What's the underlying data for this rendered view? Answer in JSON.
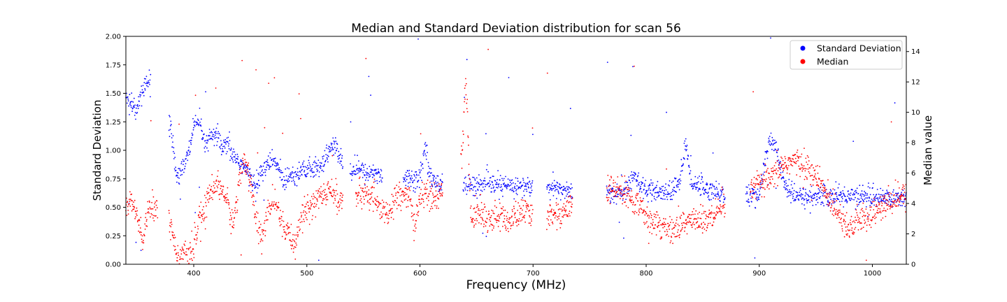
{
  "chart_data": {
    "type": "scatter",
    "title": "Median and Standard Deviation distribution for scan 56",
    "xlabel": "Frequency (MHz)",
    "ylabel_left": "Standard Deviation",
    "ylabel_right": "Median value",
    "xlim": [
      340,
      1030
    ],
    "ylim_left": [
      0,
      2.0
    ],
    "ylim_right": [
      0,
      15
    ],
    "x_ticks": [
      400,
      500,
      600,
      700,
      800,
      900,
      1000
    ],
    "y_left_ticks": [
      "0.00",
      "0.25",
      "0.50",
      "0.75",
      "1.00",
      "1.25",
      "1.50",
      "1.75",
      "2.00"
    ],
    "y_right_ticks": [
      "0",
      "2",
      "4",
      "6",
      "8",
      "10",
      "12",
      "14"
    ],
    "grid": false,
    "legend_position": "top-right",
    "series": [
      {
        "name": "Standard Deviation",
        "axis": "left",
        "color": "#0000ff",
        "anchors_x": [
          340,
          345,
          350,
          355,
          360,
          365,
          380,
          385,
          390,
          395,
          400,
          405,
          410,
          415,
          420,
          425,
          430,
          435,
          440,
          445,
          450,
          455,
          460,
          465,
          470,
          475,
          480,
          485,
          490,
          495,
          500,
          505,
          510,
          515,
          520,
          525,
          530,
          535,
          540,
          545,
          550,
          560,
          570,
          580,
          590,
          595,
          600,
          605,
          610,
          615,
          620,
          640,
          650,
          660,
          670,
          680,
          690,
          700,
          710,
          720,
          730,
          760,
          770,
          780,
          785,
          790,
          795,
          800,
          805,
          810,
          815,
          820,
          825,
          830,
          835,
          840,
          845,
          850,
          855,
          860,
          865,
          870,
          890,
          900,
          905,
          910,
          915,
          920,
          925,
          930,
          940,
          950,
          960,
          970,
          980,
          990,
          1000,
          1010,
          1020,
          1030
        ],
        "anchors_y": [
          1.45,
          1.4,
          1.35,
          1.55,
          1.6,
          1.5,
          1.2,
          0.75,
          0.85,
          0.95,
          1.2,
          1.25,
          1.05,
          1.1,
          1.15,
          1.0,
          1.05,
          0.95,
          0.9,
          0.85,
          0.75,
          0.7,
          0.8,
          0.88,
          0.9,
          0.85,
          0.72,
          0.8,
          0.78,
          0.84,
          0.82,
          0.83,
          0.86,
          0.9,
          1.0,
          1.05,
          0.9,
          0.85,
          0.82,
          0.85,
          0.8,
          0.8,
          0.78,
          0.76,
          0.76,
          0.75,
          0.77,
          1.05,
          0.72,
          0.72,
          0.72,
          0.7,
          0.69,
          0.7,
          0.69,
          0.69,
          0.68,
          0.68,
          0.66,
          0.66,
          0.65,
          0.64,
          0.63,
          0.62,
          0.7,
          0.8,
          0.7,
          0.64,
          0.63,
          0.62,
          0.63,
          0.63,
          0.65,
          0.75,
          1.05,
          0.72,
          0.7,
          0.68,
          0.64,
          0.66,
          0.62,
          0.62,
          0.6,
          0.6,
          0.9,
          1.1,
          1.0,
          0.8,
          0.65,
          0.6,
          0.59,
          0.59,
          0.59,
          0.6,
          0.6,
          0.6,
          0.59,
          0.58,
          0.58,
          0.58
        ],
        "gaps": [
          [
            362,
            378
          ],
          [
            532,
            538
          ],
          [
            567,
            585
          ],
          [
            620,
            638
          ],
          [
            700,
            712
          ],
          [
            735,
            765
          ],
          [
            870,
            888
          ]
        ]
      },
      {
        "name": "Median",
        "axis": "right",
        "color": "#ff0000",
        "anchors_x": [
          340,
          345,
          350,
          355,
          360,
          365,
          380,
          385,
          390,
          395,
          400,
          405,
          410,
          415,
          420,
          425,
          430,
          435,
          440,
          445,
          450,
          455,
          460,
          465,
          470,
          475,
          480,
          485,
          490,
          495,
          500,
          505,
          510,
          515,
          520,
          525,
          530,
          545,
          550,
          560,
          570,
          580,
          590,
          595,
          600,
          605,
          610,
          615,
          638,
          640,
          642,
          645,
          650,
          660,
          670,
          680,
          690,
          700,
          710,
          720,
          730,
          760,
          770,
          780,
          790,
          800,
          810,
          820,
          830,
          840,
          850,
          860,
          865,
          870,
          900,
          910,
          920,
          930,
          940,
          950,
          960,
          970,
          980,
          990,
          1000,
          1010,
          1020,
          1030
        ],
        "anchors_y": [
          3.8,
          4.2,
          3.0,
          1.5,
          3.5,
          4.0,
          2.5,
          0.8,
          0.5,
          0.5,
          1.0,
          3.0,
          3.5,
          5.0,
          5.2,
          5.0,
          4.0,
          2.5,
          5.5,
          7.0,
          5.5,
          3.0,
          1.5,
          3.5,
          4.0,
          3.5,
          2.0,
          1.8,
          1.5,
          3.2,
          3.5,
          4.0,
          4.5,
          4.5,
          4.8,
          4.5,
          4.2,
          4.5,
          4.5,
          4.5,
          3.0,
          4.5,
          4.5,
          2.5,
          4.5,
          4.8,
          4.3,
          4.2,
          8.0,
          12.0,
          10.0,
          3.0,
          3.5,
          3.0,
          3.2,
          2.8,
          3.5,
          3.2,
          3.5,
          3.2,
          3.6,
          4.6,
          4.9,
          4.8,
          4.0,
          3.3,
          2.8,
          2.2,
          2.5,
          3.0,
          2.8,
          3.1,
          3.5,
          3.8,
          5.3,
          5.5,
          6.5,
          6.8,
          6.5,
          5.8,
          4.5,
          3.5,
          2.3,
          3.0,
          3.3,
          3.8,
          4.3,
          4.5
        ],
        "gaps": [
          [
            368,
            378
          ],
          [
            532,
            543
          ],
          [
            620,
            636
          ],
          [
            700,
            712
          ],
          [
            735,
            765
          ],
          [
            870,
            892
          ]
        ]
      }
    ]
  }
}
